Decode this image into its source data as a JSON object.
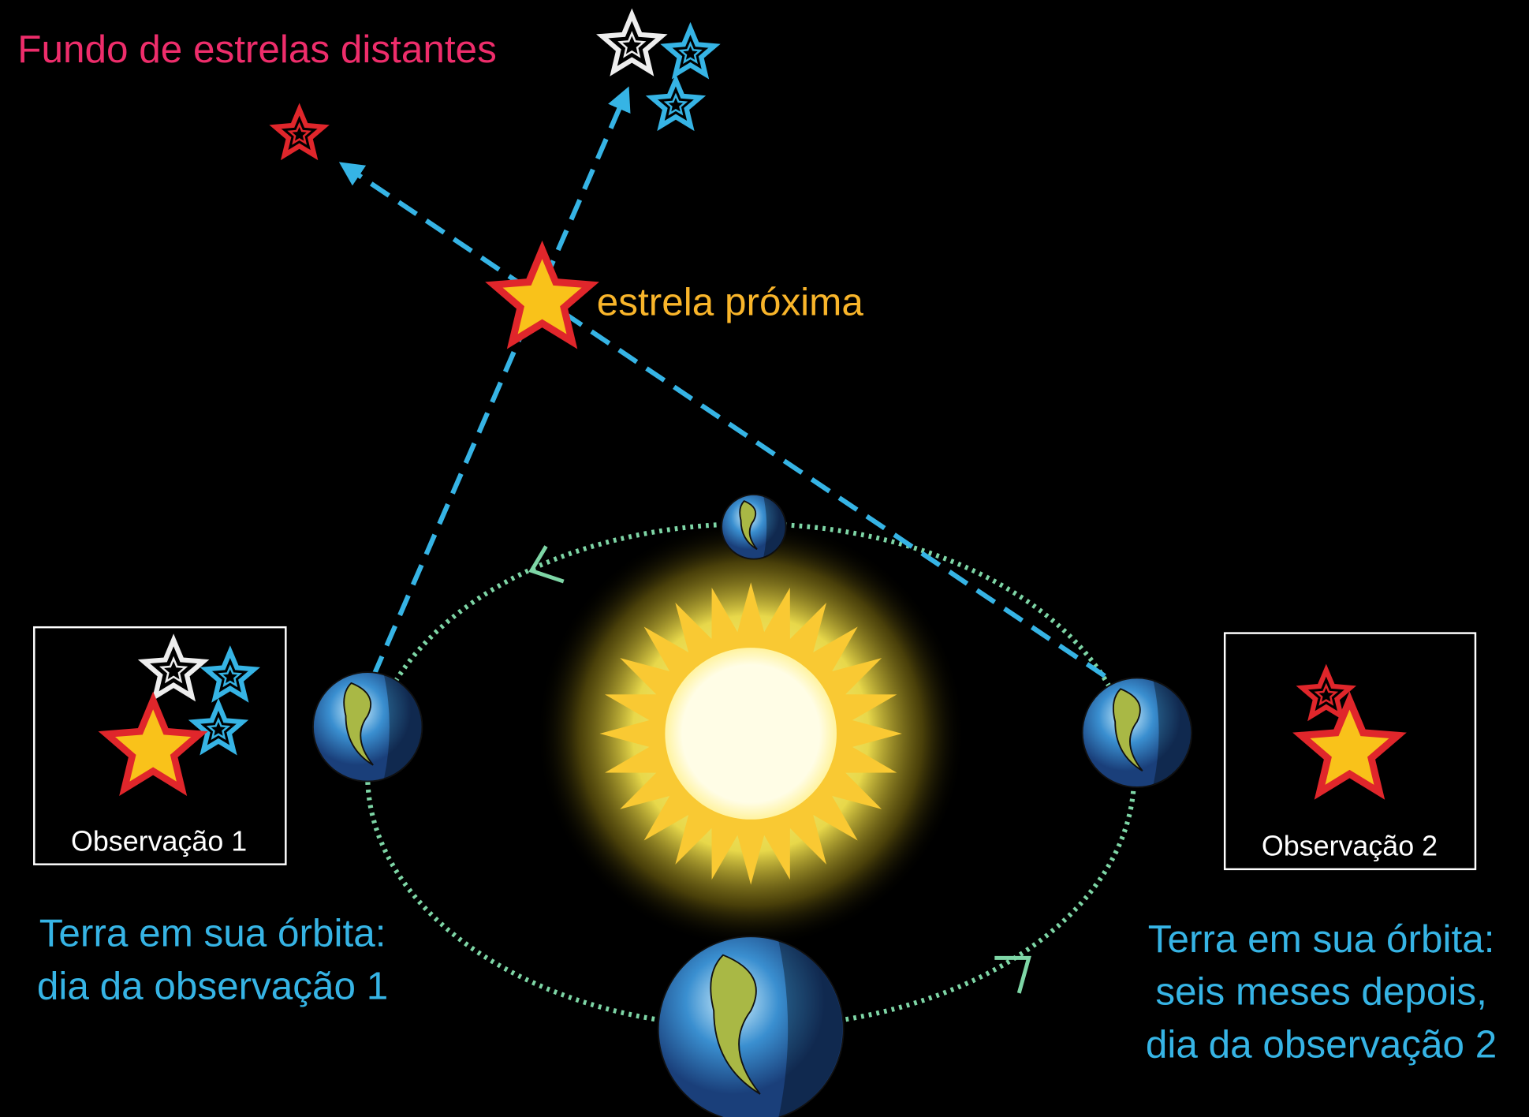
{
  "labels": {
    "background": "Fundo de estrelas distantes",
    "near_star": "estrela  próxima"
  },
  "observations": [
    {
      "label": "Observação 1",
      "caption": [
        "Terra em sua órbita:",
        "dia da observação 1"
      ]
    },
    {
      "label": "Observação 2",
      "caption": [
        "Terra em sua órbita:",
        "seis meses depois,",
        "dia da observação 2"
      ]
    }
  ]
}
